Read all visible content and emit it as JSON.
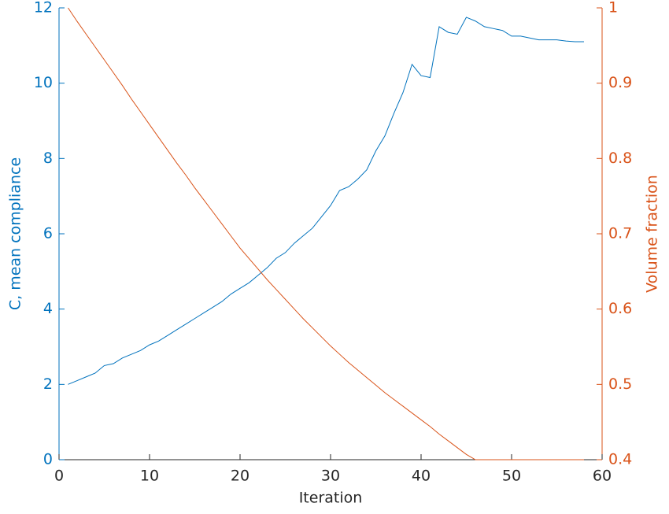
{
  "chart_data": {
    "type": "line",
    "xlabel": "Iteration",
    "ylabel": "C, mean compliance",
    "y2label": "Volume fraction",
    "x": [
      1,
      2,
      3,
      4,
      5,
      6,
      7,
      8,
      9,
      10,
      11,
      12,
      13,
      14,
      15,
      16,
      17,
      18,
      19,
      20,
      21,
      22,
      23,
      24,
      25,
      26,
      27,
      28,
      29,
      30,
      31,
      32,
      33,
      34,
      35,
      36,
      37,
      38,
      39,
      40,
      41,
      42,
      43,
      44,
      45,
      46,
      47,
      48,
      49,
      50,
      51,
      52,
      53,
      54,
      55,
      56,
      57,
      58
    ],
    "series": [
      {
        "name": "C, mean compliance",
        "color": "#0072bd",
        "axis": "y",
        "values": [
          2.0,
          2.1,
          2.2,
          2.3,
          2.5,
          2.55,
          2.7,
          2.8,
          2.9,
          3.05,
          3.15,
          3.3,
          3.45,
          3.6,
          3.75,
          3.9,
          4.05,
          4.2,
          4.4,
          4.55,
          4.7,
          4.9,
          5.1,
          5.35,
          5.5,
          5.75,
          5.95,
          6.15,
          6.45,
          6.75,
          7.15,
          7.25,
          7.45,
          7.7,
          8.2,
          8.6,
          9.2,
          9.75,
          10.5,
          10.2,
          10.15,
          11.5,
          11.35,
          11.3,
          11.75,
          11.65,
          11.5,
          11.45,
          11.4,
          11.25,
          11.25,
          11.2,
          11.15,
          11.15,
          11.15,
          11.12,
          11.1,
          11.1
        ]
      },
      {
        "name": "Volume fraction",
        "color": "#d95319",
        "axis": "y2",
        "values": [
          1.0,
          0.982,
          0.965,
          0.948,
          0.931,
          0.914,
          0.897,
          0.879,
          0.862,
          0.845,
          0.828,
          0.811,
          0.794,
          0.778,
          0.761,
          0.745,
          0.729,
          0.713,
          0.697,
          0.681,
          0.667,
          0.653,
          0.639,
          0.626,
          0.613,
          0.6,
          0.587,
          0.575,
          0.563,
          0.551,
          0.54,
          0.529,
          0.519,
          0.509,
          0.499,
          0.489,
          0.48,
          0.471,
          0.462,
          0.453,
          0.444,
          0.434,
          0.425,
          0.416,
          0.407,
          0.4,
          0.4,
          0.4,
          0.4,
          0.4,
          0.4,
          0.4,
          0.4,
          0.4,
          0.4,
          0.4,
          0.4,
          0.4
        ]
      }
    ],
    "xlim": [
      0,
      60
    ],
    "xticks": [
      0,
      10,
      20,
      30,
      40,
      50,
      60
    ],
    "ylim": [
      0,
      12
    ],
    "yticks": [
      0,
      2,
      4,
      6,
      8,
      10,
      12
    ],
    "y2lim": [
      0.4,
      1
    ],
    "y2ticks": [
      0.4,
      0.5,
      0.6,
      0.7,
      0.8,
      0.9,
      1
    ],
    "grid": false
  }
}
